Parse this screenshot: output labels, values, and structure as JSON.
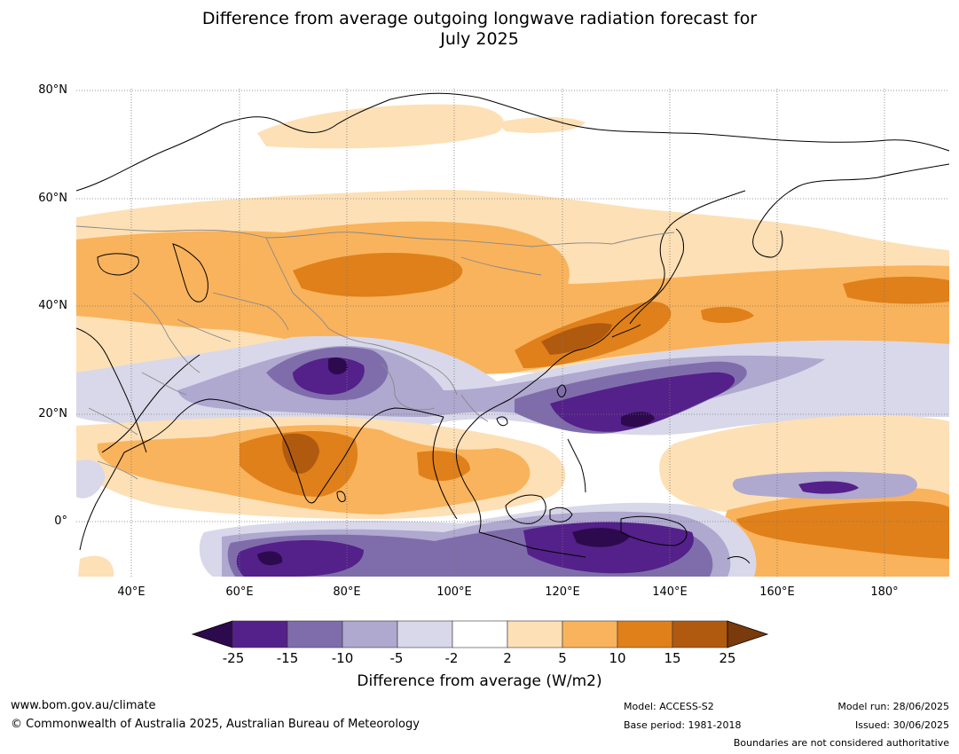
{
  "title_line1": "Difference from average outgoing longwave radiation forecast for",
  "title_line2": "July 2025",
  "lat_labels": [
    "80°N",
    "60°N",
    "40°N",
    "20°N",
    "0°"
  ],
  "lon_labels": [
    "40°E",
    "60°E",
    "80°E",
    "100°E",
    "120°E",
    "140°E",
    "160°E",
    "180°"
  ],
  "colorbar": {
    "ticks": [
      "-25",
      "-15",
      "-10",
      "-5",
      "-2",
      "2",
      "5",
      "10",
      "15",
      "25"
    ],
    "colors": [
      "#2d0a4e",
      "#54208a",
      "#7f6dab",
      "#afa8cf",
      "#d8d8ea",
      "#ffffff",
      "#fde0b6",
      "#f9b35c",
      "#e0801a",
      "#b05a10",
      "#7a3a0c"
    ],
    "title": "Difference from average (W/m2)"
  },
  "footer": {
    "website": "www.bom.gov.au/climate",
    "copyright": "© Commonwealth of Australia 2025, Australian Bureau of Meteorology",
    "model": "Model: ACCESS-S2",
    "base_period": "Base period: 1981-2018",
    "model_run": "Model run: 28/06/2025",
    "issued": "Issued: 30/06/2025",
    "disclaimer": "Boundaries are not considered authoritative"
  }
}
